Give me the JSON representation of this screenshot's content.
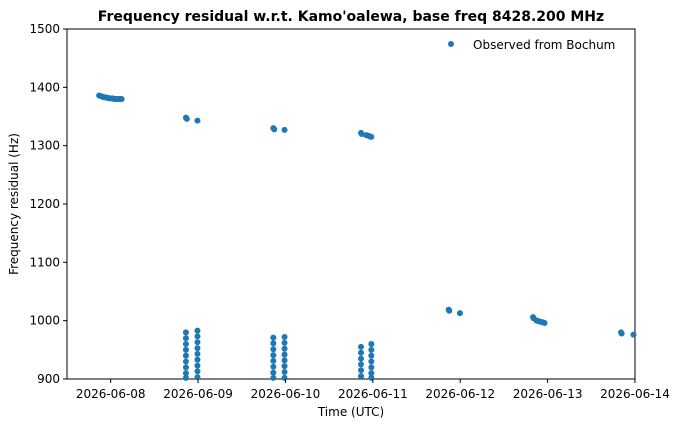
{
  "chart_data": {
    "type": "scatter",
    "title": "Frequency residual w.r.t. Kamo'oalewa, base freq 8428.200 MHz",
    "xlabel": "Time (UTC)",
    "ylabel": "Frequency residual (Hz)",
    "xlim": [
      "2026-06-07 12:00",
      "2026-06-14 00:00"
    ],
    "ylim": [
      900,
      1500
    ],
    "x_ticks": [
      "2026-06-08",
      "2026-06-09",
      "2026-06-10",
      "2026-06-11",
      "2026-06-12",
      "2026-06-13",
      "2026-06-14"
    ],
    "y_ticks": [
      900,
      1000,
      1100,
      1200,
      1300,
      1400,
      1500
    ],
    "grid": false,
    "legend_position": "top-right",
    "series": [
      {
        "name": "Observed from Bochum",
        "color": "#1f77b4",
        "marker": "circle",
        "points": [
          [
            "2026-06-07 20:50",
            1386
          ],
          [
            "2026-06-07 21:15",
            1385
          ],
          [
            "2026-06-07 21:40",
            1384
          ],
          [
            "2026-06-07 22:05",
            1383
          ],
          [
            "2026-06-07 22:30",
            1383
          ],
          [
            "2026-06-07 22:55",
            1382
          ],
          [
            "2026-06-07 23:20",
            1382
          ],
          [
            "2026-06-07 23:45",
            1381
          ],
          [
            "2026-06-08 00:10",
            1381
          ],
          [
            "2026-06-08 00:35",
            1381
          ],
          [
            "2026-06-08 01:00",
            1380
          ],
          [
            "2026-06-08 01:25",
            1380
          ],
          [
            "2026-06-08 01:50",
            1380
          ],
          [
            "2026-06-08 02:15",
            1380
          ],
          [
            "2026-06-08 02:40",
            1380
          ],
          [
            "2026-06-08 03:00",
            1380
          ],
          [
            "2026-06-08 20:40",
            1348
          ],
          [
            "2026-06-08 20:55",
            1346
          ],
          [
            "2026-06-08 23:50",
            1343
          ],
          [
            "2026-06-08 20:40",
            980
          ],
          [
            "2026-06-08 20:40",
            970
          ],
          [
            "2026-06-08 20:40",
            960
          ],
          [
            "2026-06-08 20:40",
            950
          ],
          [
            "2026-06-08 20:40",
            940
          ],
          [
            "2026-06-08 20:40",
            930
          ],
          [
            "2026-06-08 20:40",
            920
          ],
          [
            "2026-06-08 20:40",
            910
          ],
          [
            "2026-06-08 20:40",
            902
          ],
          [
            "2026-06-08 23:50",
            983
          ],
          [
            "2026-06-08 23:50",
            973
          ],
          [
            "2026-06-08 23:50",
            963
          ],
          [
            "2026-06-08 23:50",
            953
          ],
          [
            "2026-06-08 23:50",
            943
          ],
          [
            "2026-06-08 23:50",
            933
          ],
          [
            "2026-06-08 23:50",
            923
          ],
          [
            "2026-06-08 23:50",
            913
          ],
          [
            "2026-06-08 23:50",
            903
          ],
          [
            "2026-06-09 20:40",
            1330
          ],
          [
            "2026-06-09 20:55",
            1328
          ],
          [
            "2026-06-09 23:45",
            1327
          ],
          [
            "2026-06-09 20:40",
            971
          ],
          [
            "2026-06-09 20:40",
            961
          ],
          [
            "2026-06-09 20:40",
            951
          ],
          [
            "2026-06-09 20:40",
            941
          ],
          [
            "2026-06-09 20:40",
            931
          ],
          [
            "2026-06-09 20:40",
            921
          ],
          [
            "2026-06-09 20:40",
            911
          ],
          [
            "2026-06-09 20:40",
            902
          ],
          [
            "2026-06-09 23:45",
            972
          ],
          [
            "2026-06-09 23:45",
            962
          ],
          [
            "2026-06-09 23:45",
            952
          ],
          [
            "2026-06-09 23:45",
            942
          ],
          [
            "2026-06-09 23:45",
            932
          ],
          [
            "2026-06-09 23:45",
            922
          ],
          [
            "2026-06-09 23:45",
            912
          ],
          [
            "2026-06-09 23:45",
            902
          ],
          [
            "2026-06-10 20:45",
            1322
          ],
          [
            "2026-06-10 20:55",
            1320
          ],
          [
            "2026-06-10 22:10",
            1318
          ],
          [
            "2026-06-10 22:45",
            1317
          ],
          [
            "2026-06-10 23:10",
            1316
          ],
          [
            "2026-06-10 23:35",
            1315
          ],
          [
            "2026-06-10 20:45",
            955
          ],
          [
            "2026-06-10 20:45",
            945
          ],
          [
            "2026-06-10 20:45",
            935
          ],
          [
            "2026-06-10 20:45",
            925
          ],
          [
            "2026-06-10 20:45",
            915
          ],
          [
            "2026-06-10 20:45",
            905
          ],
          [
            "2026-06-10 23:35",
            960
          ],
          [
            "2026-06-10 23:35",
            950
          ],
          [
            "2026-06-10 23:35",
            940
          ],
          [
            "2026-06-10 23:35",
            930
          ],
          [
            "2026-06-10 23:35",
            920
          ],
          [
            "2026-06-10 23:35",
            910
          ],
          [
            "2026-06-10 23:35",
            902
          ],
          [
            "2026-06-11 20:50",
            1019
          ],
          [
            "2026-06-11 21:00",
            1017
          ],
          [
            "2026-06-11 23:55",
            1013
          ],
          [
            "2026-06-12 20:00",
            1006
          ],
          [
            "2026-06-12 20:10",
            1004
          ],
          [
            "2026-06-12 21:00",
            1000
          ],
          [
            "2026-06-12 21:35",
            999
          ],
          [
            "2026-06-12 22:10",
            998
          ],
          [
            "2026-06-12 22:45",
            997
          ],
          [
            "2026-06-12 23:10",
            996
          ],
          [
            "2026-06-13 20:10",
            980
          ],
          [
            "2026-06-13 20:20",
            978
          ],
          [
            "2026-06-13 23:35",
            976
          ]
        ]
      }
    ]
  }
}
